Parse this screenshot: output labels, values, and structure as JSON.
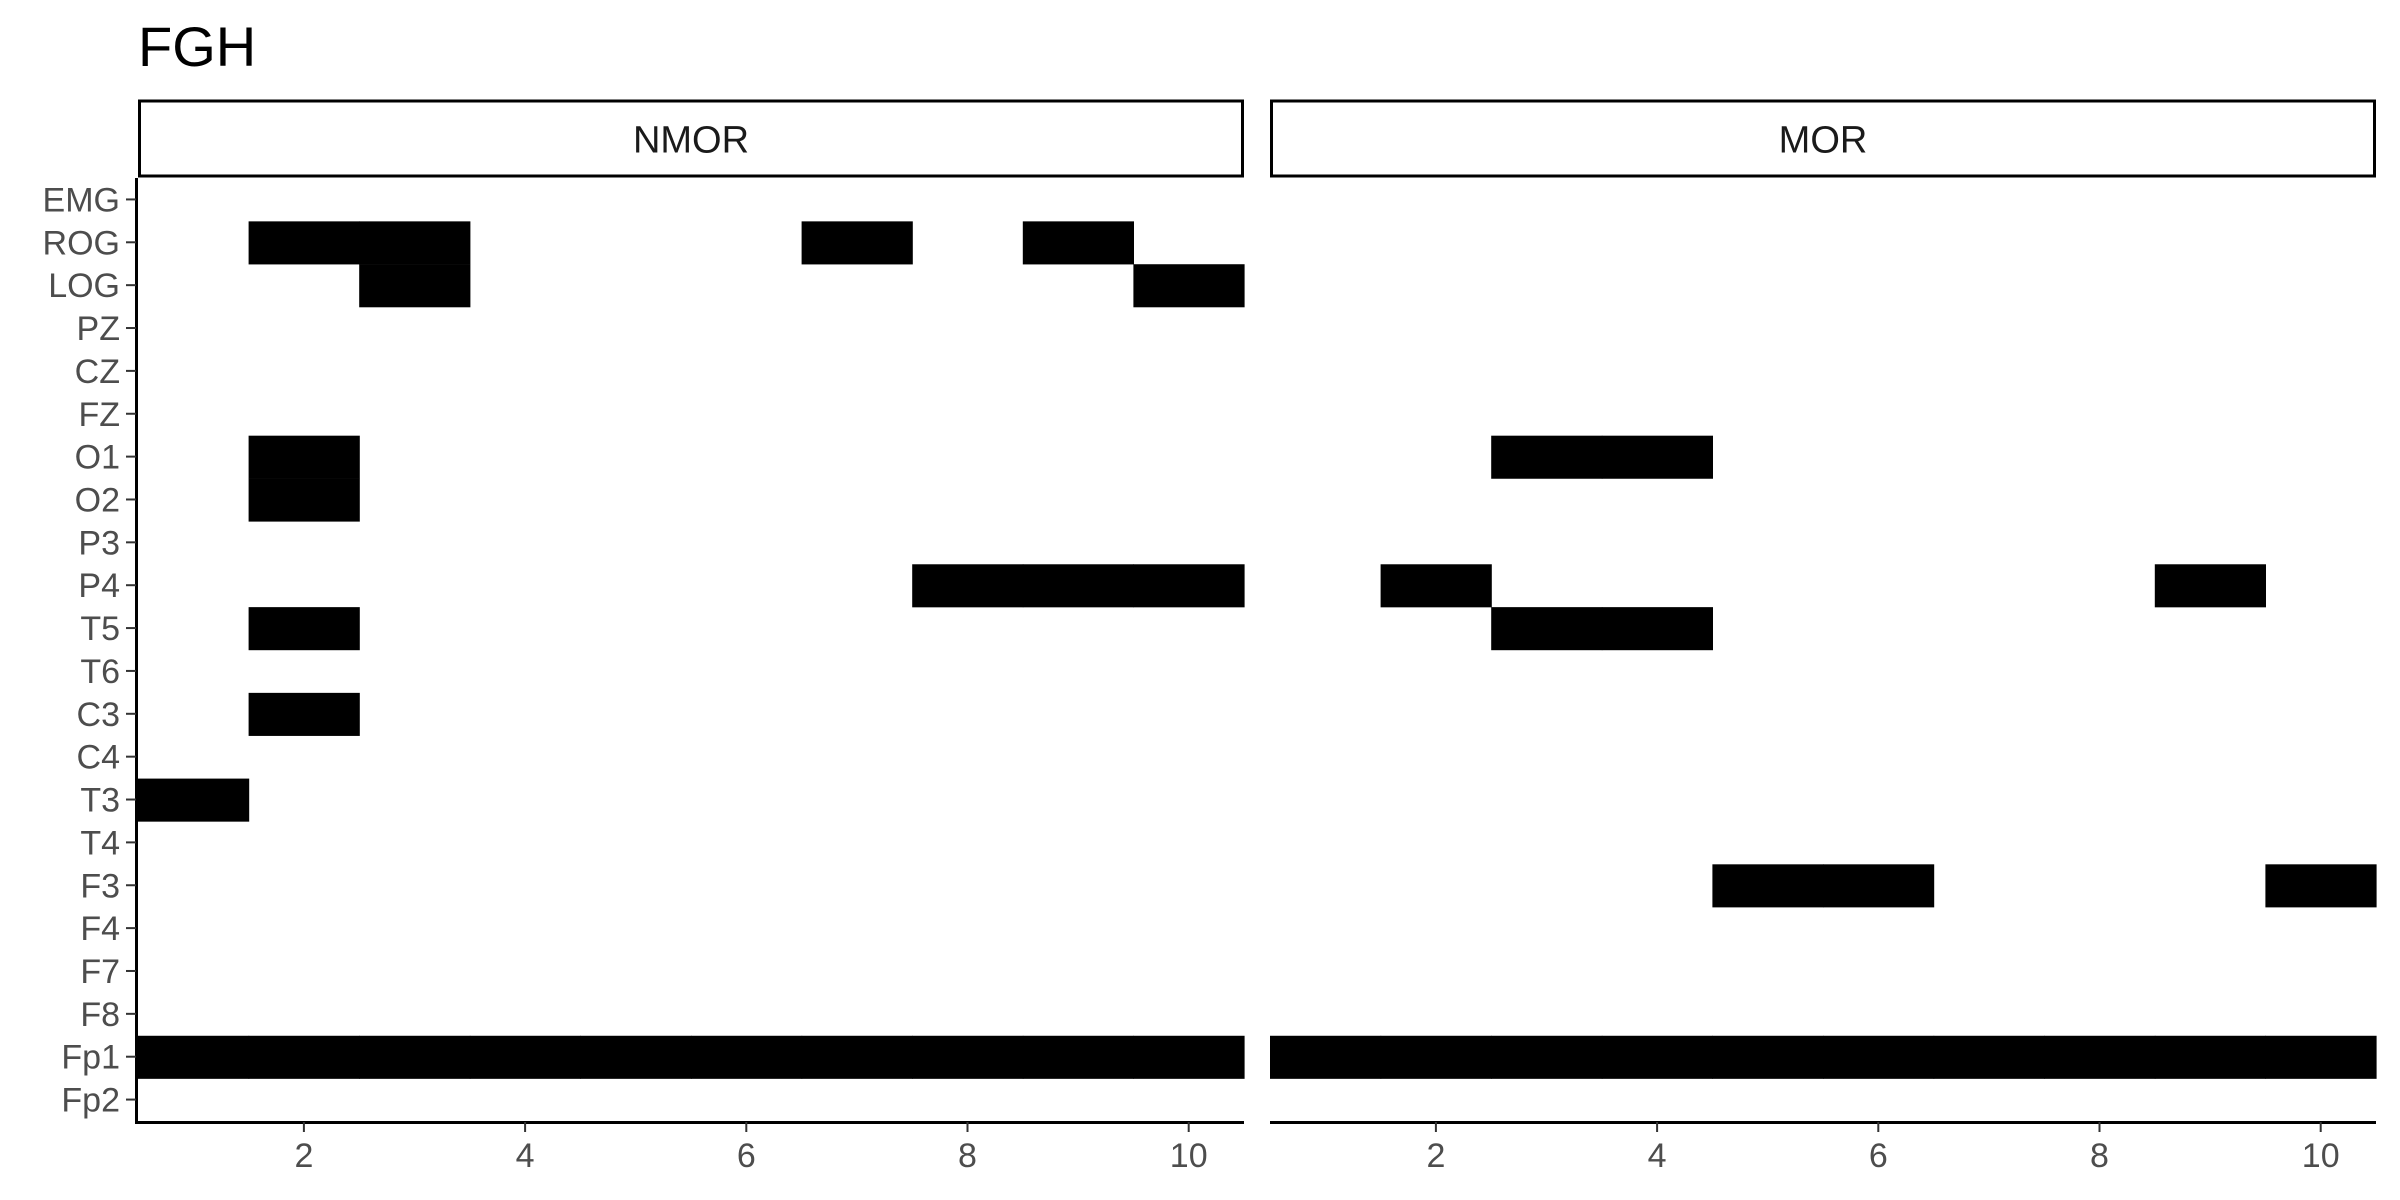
{
  "chart_data": {
    "type": "heatmap",
    "title": "FGH",
    "xlabel": "",
    "ylabel": "",
    "x_range": [
      0.5,
      10.5
    ],
    "x_ticks": [
      2,
      4,
      6,
      8,
      10
    ],
    "y_categories": [
      "EMG",
      "ROG",
      "LOG",
      "PZ",
      "CZ",
      "FZ",
      "O1",
      "O2",
      "P3",
      "P4",
      "T5",
      "T6",
      "C3",
      "C4",
      "T3",
      "T4",
      "F3",
      "F4",
      "F7",
      "F8",
      "Fp1",
      "Fp2"
    ],
    "fill_color": "#000000",
    "legend": "none",
    "grid": false,
    "panels": [
      {
        "name": "NMOR",
        "cells": [
          {
            "channel": "ROG",
            "x": [
              2,
              3,
              7,
              9
            ]
          },
          {
            "channel": "LOG",
            "x": [
              3,
              10
            ]
          },
          {
            "channel": "O1",
            "x": [
              2
            ]
          },
          {
            "channel": "O2",
            "x": [
              2
            ]
          },
          {
            "channel": "P4",
            "x": [
              8,
              9,
              10
            ]
          },
          {
            "channel": "T5",
            "x": [
              2
            ]
          },
          {
            "channel": "C3",
            "x": [
              2
            ]
          },
          {
            "channel": "T3",
            "x": [
              1
            ]
          },
          {
            "channel": "Fp1",
            "x": [
              1,
              2,
              3,
              4,
              5,
              6,
              7,
              8,
              9,
              10
            ]
          }
        ]
      },
      {
        "name": "MOR",
        "cells": [
          {
            "channel": "O1",
            "x": [
              3,
              4
            ]
          },
          {
            "channel": "P4",
            "x": [
              2,
              9
            ]
          },
          {
            "channel": "T5",
            "x": [
              3,
              4
            ]
          },
          {
            "channel": "F3",
            "x": [
              5,
              6,
              10
            ]
          },
          {
            "channel": "Fp1",
            "x": [
              1,
              2,
              3,
              4,
              5,
              6,
              7,
              8,
              9,
              10
            ]
          }
        ]
      }
    ]
  }
}
